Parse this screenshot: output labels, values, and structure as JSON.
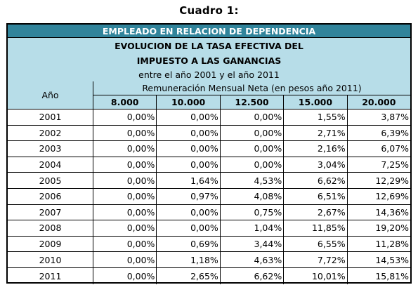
{
  "caption": "Cuadro 1:",
  "band_title": "EMPLEADO EN RELACION DE DEPENDENCIA",
  "subtitle_line1": "EVOLUCION DE LA TASA EFECTIVA DEL",
  "subtitle_line2": "IMPUESTO A LAS GANANCIAS",
  "subtitle_line3": "entre el año 2001 y el año 2011",
  "year_header": "Año",
  "remun_header": "Remuneración Mensual Neta (en pesos año 2011)",
  "columns": [
    "8.000",
    "10.000",
    "12.500",
    "15.000",
    "20.000"
  ],
  "rows": [
    {
      "year": "2001",
      "values": [
        "0,00%",
        "0,00%",
        "0,00%",
        "1,55%",
        "3,87%"
      ]
    },
    {
      "year": "2002",
      "values": [
        "0,00%",
        "0,00%",
        "0,00%",
        "2,71%",
        "6,39%"
      ]
    },
    {
      "year": "2003",
      "values": [
        "0,00%",
        "0,00%",
        "0,00%",
        "2,16%",
        "6,07%"
      ]
    },
    {
      "year": "2004",
      "values": [
        "0,00%",
        "0,00%",
        "0,00%",
        "3,04%",
        "7,25%"
      ]
    },
    {
      "year": "2005",
      "values": [
        "0,00%",
        "1,64%",
        "4,53%",
        "6,62%",
        "12,29%"
      ]
    },
    {
      "year": "2006",
      "values": [
        "0,00%",
        "0,97%",
        "4,08%",
        "6,51%",
        "12,69%"
      ]
    },
    {
      "year": "2007",
      "values": [
        "0,00%",
        "0,00%",
        "0,75%",
        "2,67%",
        "14,36%"
      ]
    },
    {
      "year": "2008",
      "values": [
        "0,00%",
        "0,00%",
        "1,04%",
        "11,85%",
        "19,20%"
      ]
    },
    {
      "year": "2009",
      "values": [
        "0,00%",
        "0,69%",
        "3,44%",
        "6,55%",
        "11,28%"
      ]
    },
    {
      "year": "2010",
      "values": [
        "0,00%",
        "1,18%",
        "4,63%",
        "7,72%",
        "14,53%"
      ]
    },
    {
      "year": "2011",
      "values": [
        "0,00%",
        "2,65%",
        "6,62%",
        "10,01%",
        "15,81%"
      ]
    }
  ],
  "colors": {
    "band_dark": "#31849b",
    "band_light": "#b7dde8"
  }
}
